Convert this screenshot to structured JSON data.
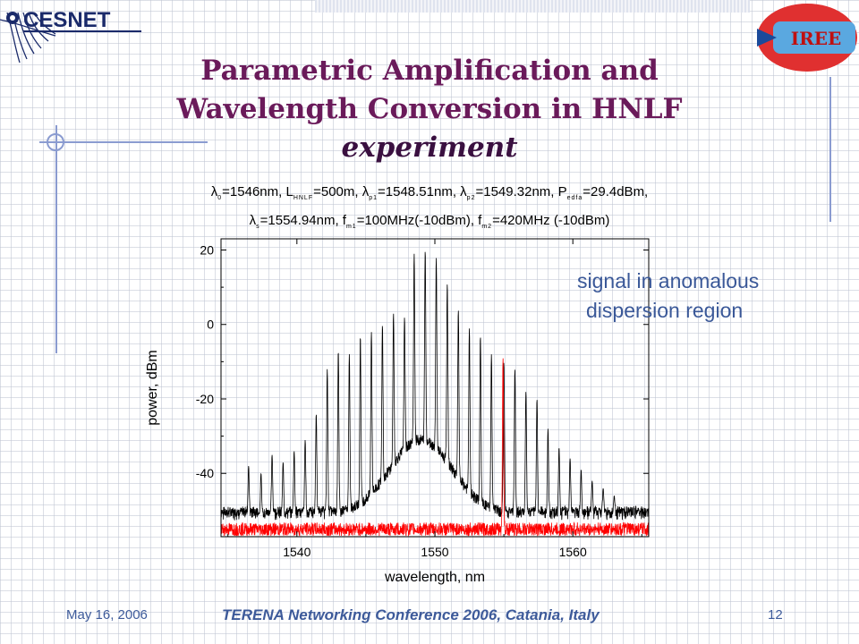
{
  "header": {
    "cesnet_logo_text": "CESNET",
    "iree_logo_text": "IREE"
  },
  "title": {
    "line1": "Parametric Amplification and",
    "line2": "Wavelength Conversion in HNLF",
    "line3": "experiment"
  },
  "params": {
    "line1": [
      {
        "t": "λ"
      },
      {
        "t": "0",
        "sub": true
      },
      {
        "t": "=1546nm, L"
      },
      {
        "t": "HNLF",
        "sub": true
      },
      {
        "t": "=500m, λ"
      },
      {
        "t": "p1",
        "sub": true
      },
      {
        "t": "=1548.51nm, λ"
      },
      {
        "t": "p2",
        "sub": true
      },
      {
        "t": "=1549.32nm, P"
      },
      {
        "t": "edfa",
        "sub": true
      },
      {
        "t": "=29.4dBm,"
      }
    ],
    "line2": [
      {
        "t": "λ"
      },
      {
        "t": "s",
        "sub": true
      },
      {
        "t": "=1554.94nm, f"
      },
      {
        "t": "m1",
        "sub": true
      },
      {
        "t": "=100MHz(-10dBm), f"
      },
      {
        "t": "m2",
        "sub": true
      },
      {
        "t": "=420MHz (-10dBm)"
      }
    ]
  },
  "annotation": {
    "line1": "signal in anomalous",
    "line2": "dispersion region"
  },
  "footer": {
    "date": "May 16, 2006",
    "conference": "TERENA Networking Conference 2006, Catania, Italy",
    "page": "12"
  },
  "colors": {
    "title": "#6a1a5a",
    "footer": "#3d5a9a",
    "annotation": "#3a5898",
    "series_output": "#000000",
    "series_signal": "#ff0000"
  },
  "chart_data": {
    "type": "line",
    "title": "",
    "xlabel": "wavelength, nm",
    "ylabel": "power, dBm",
    "xlim": [
      1534.5,
      1565.5
    ],
    "ylim": [
      -57,
      23
    ],
    "xticks": [
      1540,
      1550,
      1560
    ],
    "yticks": [
      20,
      0,
      -20,
      -40
    ],
    "grid": false,
    "noise_floor_black": -51,
    "noise_floor_red": -55,
    "series": [
      {
        "name": "",
        "color": "#000000",
        "peaks": [
          {
            "x": 1536.5,
            "y": -38
          },
          {
            "x": 1537.4,
            "y": -40
          },
          {
            "x": 1538.2,
            "y": -35
          },
          {
            "x": 1539.0,
            "y": -37
          },
          {
            "x": 1539.8,
            "y": -34
          },
          {
            "x": 1540.6,
            "y": -31
          },
          {
            "x": 1541.4,
            "y": -24
          },
          {
            "x": 1542.2,
            "y": -12
          },
          {
            "x": 1543.0,
            "y": -7
          },
          {
            "x": 1543.8,
            "y": -8
          },
          {
            "x": 1544.6,
            "y": -3
          },
          {
            "x": 1545.4,
            "y": -2
          },
          {
            "x": 1546.2,
            "y": 0
          },
          {
            "x": 1547.0,
            "y": 3
          },
          {
            "x": 1547.8,
            "y": 2
          },
          {
            "x": 1548.5,
            "y": 19
          },
          {
            "x": 1549.3,
            "y": 20
          },
          {
            "x": 1550.1,
            "y": 18
          },
          {
            "x": 1550.9,
            "y": 11
          },
          {
            "x": 1551.7,
            "y": 4
          },
          {
            "x": 1552.5,
            "y": -1
          },
          {
            "x": 1553.3,
            "y": -3
          },
          {
            "x": 1554.1,
            "y": -8
          },
          {
            "x": 1555.0,
            "y": -10
          },
          {
            "x": 1555.8,
            "y": -12
          },
          {
            "x": 1556.6,
            "y": -18
          },
          {
            "x": 1557.4,
            "y": -20
          },
          {
            "x": 1558.2,
            "y": -28
          },
          {
            "x": 1559.0,
            "y": -33
          },
          {
            "x": 1559.8,
            "y": -36
          },
          {
            "x": 1560.6,
            "y": -39
          },
          {
            "x": 1561.4,
            "y": -42
          },
          {
            "x": 1562.2,
            "y": -44
          },
          {
            "x": 1563.0,
            "y": -46
          }
        ]
      },
      {
        "name": "",
        "color": "#ff0000",
        "peaks": [
          {
            "x": 1554.94,
            "y": -9
          }
        ]
      }
    ]
  }
}
